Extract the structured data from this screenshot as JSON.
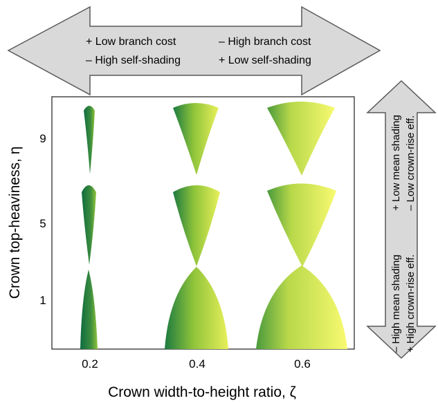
{
  "top_arrow": {
    "left_lines": [
      "+ Low branch cost",
      "– High self-shading"
    ],
    "right_lines": [
      "– High branch cost",
      "+ Low self-shading"
    ]
  },
  "right_arrow": {
    "bottom_lines": [
      "– High mean shading",
      "+ High crown-rise eff."
    ],
    "top_lines": [
      "+ Low mean shading",
      "– Low crown-rise eff."
    ]
  },
  "y_axis": {
    "label": "Crown top-heaviness, η",
    "ticks": [
      "9",
      "5",
      "1"
    ]
  },
  "x_axis": {
    "label": "Crown width-to-height ratio, ζ",
    "ticks": [
      "0.2",
      "0.4",
      "0.6"
    ]
  },
  "crown_grid": {
    "zeta": [
      0.2,
      0.4,
      0.6
    ],
    "eta": [
      9,
      5,
      1
    ]
  },
  "colors": {
    "arrow_fill": "#d9d9d9",
    "arrow_stroke": "#595959",
    "crown_dark": "#0f6b3f",
    "crown_mid": "#8fc43a",
    "crown_light": "#f4f76a"
  }
}
